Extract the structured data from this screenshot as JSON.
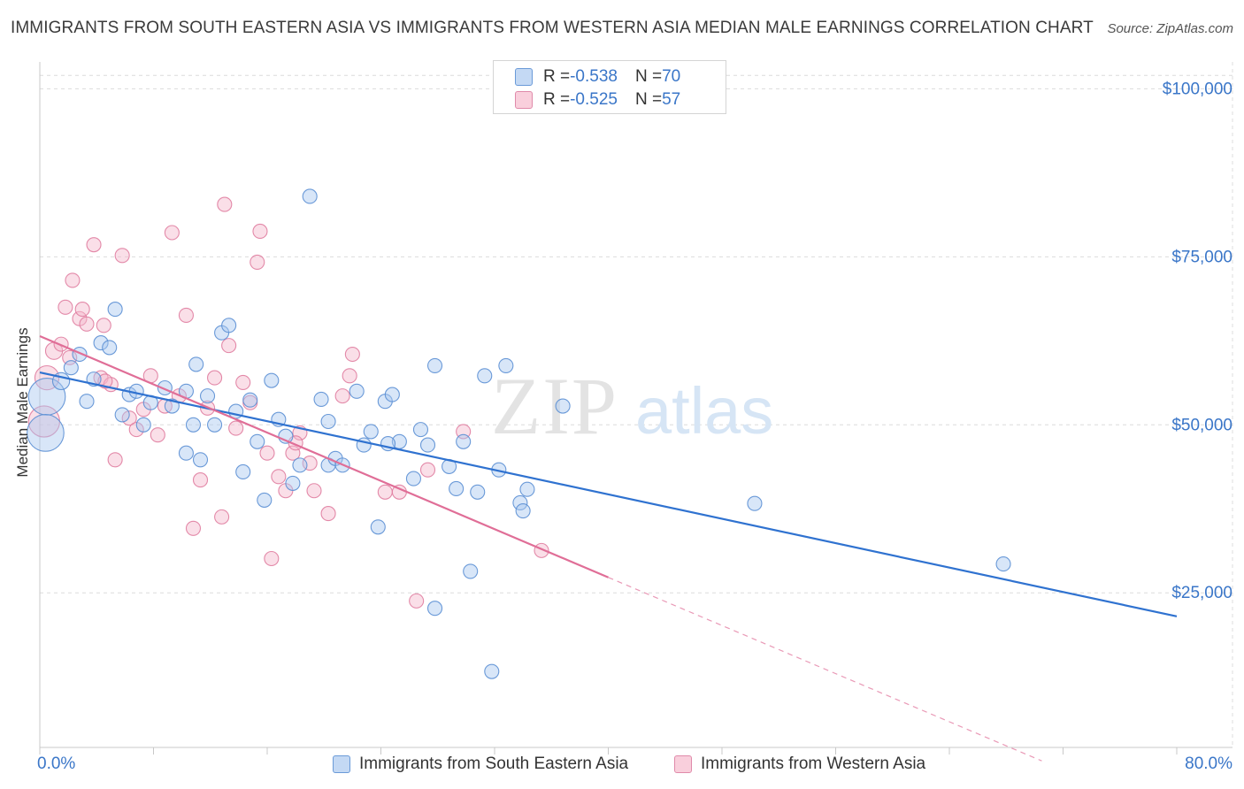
{
  "title": "IMMIGRANTS FROM SOUTH EASTERN ASIA VS IMMIGRANTS FROM WESTERN ASIA MEDIAN MALE EARNINGS CORRELATION CHART",
  "source": "Source: ZipAtlas.com",
  "watermark": {
    "zip": "ZIP",
    "atlas": "atlas"
  },
  "stats": [
    {
      "r_label": "R = ",
      "r_value": "-0.538",
      "n_label": "N = ",
      "n_value": "70",
      "color": "#a8c8f0"
    },
    {
      "r_label": "R = ",
      "r_value": "-0.525",
      "n_label": "N = ",
      "n_value": "57",
      "color": "#f5b8cc"
    }
  ],
  "chart_data": {
    "type": "scatter",
    "title": "IMMIGRANTS FROM SOUTH EASTERN ASIA VS IMMIGRANTS FROM WESTERN ASIA MEDIAN MALE EARNINGS CORRELATION CHART",
    "xlabel": "",
    "ylabel": "Median Male Earnings",
    "xlim": [
      0,
      80
    ],
    "ylim": [
      2000,
      104000
    ],
    "x_tick_labels": [
      "0.0%",
      "80.0%"
    ],
    "y_ticks": [
      25000,
      50000,
      75000,
      100000
    ],
    "y_tick_labels": [
      "$25,000",
      "$50,000",
      "$75,000",
      "$100,000"
    ],
    "grid": true,
    "legend_position": "bottom",
    "series": [
      {
        "name": "Immigrants from South Eastern Asia",
        "color": "#a8c8f0",
        "stroke": "#5b8fd4",
        "trend_color": "#2f72d0",
        "trend": {
          "x0": 0,
          "y0": 57800,
          "x1": 80,
          "y1": 21500
        },
        "points": [
          [
            0.5,
            54200,
            2.6
          ],
          [
            0.4,
            48800,
            2.6
          ],
          [
            1.5,
            56500,
            1.2
          ],
          [
            2.2,
            58500,
            1
          ],
          [
            2.8,
            60500,
            1
          ],
          [
            3.3,
            53500,
            1
          ],
          [
            3.8,
            56800,
            1
          ],
          [
            4.3,
            62200,
            1
          ],
          [
            4.9,
            61500,
            1
          ],
          [
            5.3,
            67200,
            1
          ],
          [
            5.8,
            51500,
            1
          ],
          [
            6.3,
            54500,
            1
          ],
          [
            6.8,
            55000,
            1
          ],
          [
            7.3,
            50000,
            1
          ],
          [
            7.8,
            53300,
            1
          ],
          [
            8.8,
            55500,
            1
          ],
          [
            9.3,
            52800,
            1
          ],
          [
            10.3,
            55000,
            1
          ],
          [
            10.3,
            45800,
            1
          ],
          [
            10.8,
            50000,
            1
          ],
          [
            11.3,
            44800,
            1
          ],
          [
            11.8,
            54300,
            1
          ],
          [
            12.3,
            50000,
            1
          ],
          [
            12.8,
            63700,
            1
          ],
          [
            13.3,
            64800,
            1
          ],
          [
            13.8,
            52000,
            1
          ],
          [
            14.3,
            43000,
            1
          ],
          [
            14.8,
            53700,
            1
          ],
          [
            15.3,
            47500,
            1
          ],
          [
            15.8,
            38800,
            1
          ],
          [
            16.3,
            56600,
            1
          ],
          [
            16.8,
            50800,
            1
          ],
          [
            17.3,
            48300,
            1
          ],
          [
            17.8,
            41300,
            1
          ],
          [
            18.3,
            44000,
            1
          ],
          [
            19.0,
            84000,
            1
          ],
          [
            20.3,
            44000,
            1
          ],
          [
            20.3,
            50500,
            1
          ],
          [
            20.8,
            45000,
            1
          ],
          [
            21.3,
            44000,
            1
          ],
          [
            22.3,
            55000,
            1
          ],
          [
            22.8,
            47000,
            1
          ],
          [
            23.3,
            49000,
            1
          ],
          [
            23.8,
            34800,
            1
          ],
          [
            24.3,
            53500,
            1
          ],
          [
            24.8,
            54500,
            1
          ],
          [
            25.3,
            47500,
            1
          ],
          [
            26.3,
            42000,
            1
          ],
          [
            26.8,
            49300,
            1
          ],
          [
            27.3,
            47000,
            1
          ],
          [
            27.8,
            58800,
            1
          ],
          [
            28.8,
            43800,
            1
          ],
          [
            29.3,
            40500,
            1
          ],
          [
            29.8,
            47500,
            1
          ],
          [
            30.3,
            28200,
            1
          ],
          [
            30.8,
            40000,
            1
          ],
          [
            31.3,
            57300,
            1
          ],
          [
            31.8,
            13300,
            1
          ],
          [
            32.3,
            43300,
            1
          ],
          [
            32.8,
            58800,
            1
          ],
          [
            33.8,
            38400,
            1
          ],
          [
            34.0,
            37200,
            1
          ],
          [
            34.3,
            40400,
            1
          ],
          [
            36.8,
            52800,
            1
          ],
          [
            50.3,
            38300,
            1
          ],
          [
            67.8,
            29300,
            1
          ],
          [
            27.8,
            22700,
            1
          ],
          [
            24.5,
            47200,
            1
          ],
          [
            19.8,
            53800,
            1
          ],
          [
            11.0,
            59000,
            1
          ]
        ]
      },
      {
        "name": "Immigrants from Western Asia",
        "color": "#f5b8cc",
        "stroke": "#e07da0",
        "trend_color": "#e06e97",
        "trend": {
          "x0": 0,
          "y0": 63200,
          "x1": 40,
          "y1": 27300
        },
        "trend_ext": {
          "x0": 40,
          "y0": 27300,
          "x1": 70.5,
          "y1": 0
        },
        "points": [
          [
            0.3,
            50500,
            2.2
          ],
          [
            0.5,
            57000,
            1.7
          ],
          [
            1.0,
            61000,
            1.2
          ],
          [
            1.5,
            62000,
            1
          ],
          [
            1.8,
            67500,
            1
          ],
          [
            2.1,
            60000,
            1
          ],
          [
            2.3,
            71500,
            1
          ],
          [
            2.8,
            65800,
            1
          ],
          [
            3.0,
            67200,
            1
          ],
          [
            3.3,
            65000,
            1
          ],
          [
            3.8,
            76800,
            1
          ],
          [
            4.3,
            57000,
            1
          ],
          [
            4.5,
            64800,
            1
          ],
          [
            5.0,
            56000,
            1
          ],
          [
            5.3,
            44800,
            1
          ],
          [
            5.8,
            75200,
            1
          ],
          [
            6.3,
            51000,
            1
          ],
          [
            6.8,
            49300,
            1
          ],
          [
            7.3,
            52300,
            1
          ],
          [
            7.8,
            57300,
            1
          ],
          [
            8.3,
            48500,
            1
          ],
          [
            8.8,
            52800,
            1
          ],
          [
            9.3,
            78600,
            1
          ],
          [
            9.8,
            54300,
            1
          ],
          [
            10.3,
            66300,
            1
          ],
          [
            10.8,
            34600,
            1
          ],
          [
            11.3,
            41800,
            1
          ],
          [
            12.3,
            57000,
            1
          ],
          [
            12.8,
            36300,
            1
          ],
          [
            13.0,
            82800,
            1
          ],
          [
            13.3,
            61800,
            1
          ],
          [
            13.8,
            49500,
            1
          ],
          [
            14.3,
            56300,
            1
          ],
          [
            14.8,
            53300,
            1
          ],
          [
            15.3,
            74200,
            1
          ],
          [
            15.5,
            78800,
            1
          ],
          [
            16.0,
            45800,
            1
          ],
          [
            16.3,
            30100,
            1
          ],
          [
            16.8,
            42300,
            1
          ],
          [
            17.3,
            40200,
            1
          ],
          [
            17.8,
            45800,
            1
          ],
          [
            18.3,
            48800,
            1
          ],
          [
            19.0,
            44300,
            1
          ],
          [
            19.3,
            40200,
            1
          ],
          [
            20.3,
            36800,
            1
          ],
          [
            21.3,
            54300,
            1
          ],
          [
            21.8,
            57300,
            1
          ],
          [
            22.0,
            60500,
            1
          ],
          [
            24.3,
            40000,
            1
          ],
          [
            25.3,
            40000,
            1
          ],
          [
            26.5,
            23800,
            1
          ],
          [
            27.3,
            43300,
            1
          ],
          [
            29.8,
            49000,
            1
          ],
          [
            35.3,
            31300,
            1
          ],
          [
            18.0,
            47300,
            1
          ],
          [
            11.8,
            52500,
            1
          ],
          [
            4.6,
            56500,
            1
          ]
        ]
      }
    ]
  }
}
